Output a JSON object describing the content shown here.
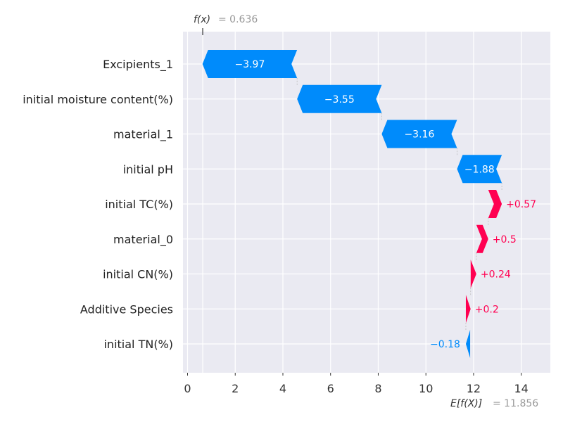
{
  "chart_data": {
    "type": "waterfall",
    "features": [
      {
        "name": "Excipients_1",
        "value": -3.97,
        "label": "−3.97"
      },
      {
        "name": "initial moisture content(%)",
        "value": -3.55,
        "label": "−3.55"
      },
      {
        "name": "material_1",
        "value": -3.16,
        "label": "−3.16"
      },
      {
        "name": "initial pH",
        "value": -1.88,
        "label": "−1.88"
      },
      {
        "name": "initial TC(%)",
        "value": 0.57,
        "label": "+0.57"
      },
      {
        "name": "material_0",
        "value": 0.5,
        "label": "+0.5"
      },
      {
        "name": "initial CN(%)",
        "value": 0.24,
        "label": "+0.24"
      },
      {
        "name": "Additive Species",
        "value": 0.2,
        "label": "+0.2"
      },
      {
        "name": "initial TN(%)",
        "value": -0.18,
        "label": "−0.18"
      }
    ],
    "fx_label": "f(x)",
    "fx_value": 0.636,
    "fx_value_label": "= 0.636",
    "efx_label": "E[f(X)]",
    "efx_value": 11.856,
    "efx_value_label": "= 11.856",
    "xticks": [
      0,
      2,
      4,
      6,
      8,
      10,
      12,
      14
    ],
    "xlim": [
      -0.2,
      15.3
    ],
    "grid": true,
    "colors": {
      "negative": "#008bfb",
      "positive": "#ff0051",
      "background": "#eaeaf2",
      "muted": "#999999"
    }
  }
}
